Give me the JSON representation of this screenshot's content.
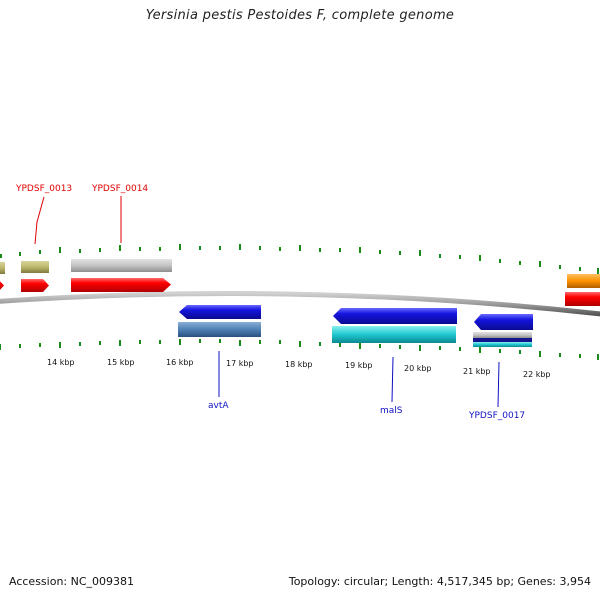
{
  "title": "Yersinia pestis Pestoides F, complete genome",
  "scale": {
    "ticks": [
      "14 kbp",
      "15 kbp",
      "16 kbp",
      "17 kbp",
      "18 kbp",
      "19 kbp",
      "20 kbp",
      "21 kbp",
      "22 kbp"
    ]
  },
  "genes": {
    "forward_labels": [
      "YPDSF_0013",
      "YPDSF_0014"
    ],
    "reverse_labels": [
      "avtA",
      "malS",
      "YPDSF_0017"
    ]
  },
  "colors": {
    "cds_forward": "#ff0000",
    "cds_reverse": "#1515e0",
    "backbone": "#888888",
    "tick": "#1a8a1a",
    "label_forward": "#e00000",
    "label_reverse": "#1010c0"
  },
  "footer": {
    "accession": "Accession: NC_009381",
    "summary": "Topology: circular; Length: 4,517,345 bp; Genes: 3,954"
  }
}
